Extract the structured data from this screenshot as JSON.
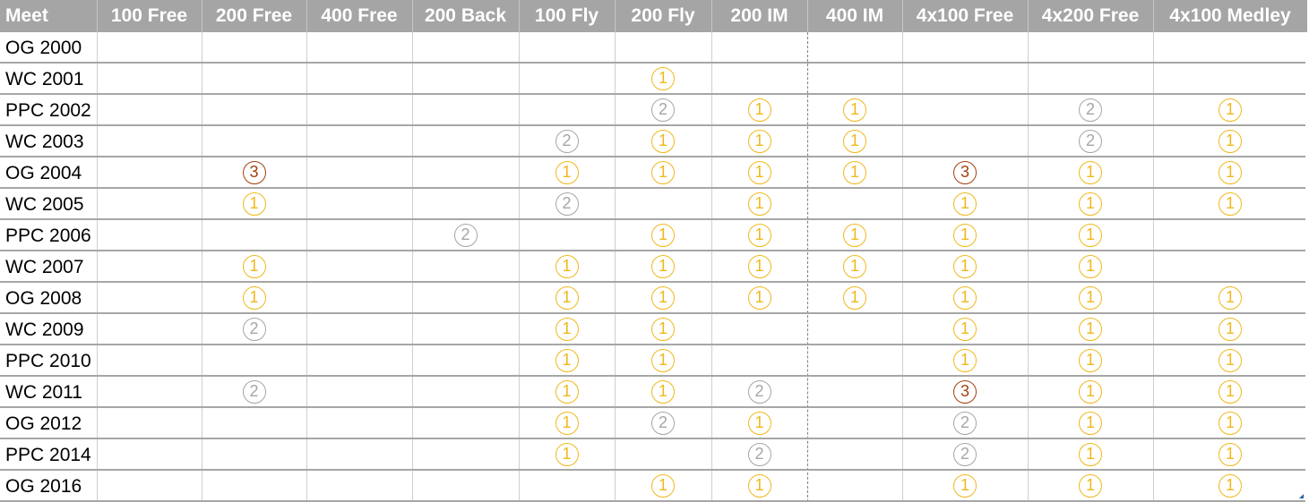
{
  "table": {
    "headers": [
      "Meet",
      "100 Free",
      "200 Free",
      "400 Free",
      "200 Back",
      "100 Fly",
      "200 Fly",
      "200 IM",
      "400 IM",
      "4x100 Free",
      "4x200 Free",
      "4x100 Medley"
    ],
    "rows": [
      {
        "meet": "OG 2000",
        "cells": [
          "",
          "",
          "",
          "",
          "",
          "",
          "",
          "",
          "",
          "",
          ""
        ]
      },
      {
        "meet": "WC 2001",
        "cells": [
          "",
          "",
          "",
          "",
          "",
          "1",
          "",
          "",
          "",
          "",
          ""
        ]
      },
      {
        "meet": "PPC 2002",
        "cells": [
          "",
          "",
          "",
          "",
          "",
          "2",
          "1",
          "1",
          "",
          "2",
          "1"
        ]
      },
      {
        "meet": "WC 2003",
        "cells": [
          "",
          "",
          "",
          "",
          "2",
          "1",
          "1",
          "1",
          "",
          "2",
          "1"
        ]
      },
      {
        "meet": "OG 2004",
        "cells": [
          "",
          "3",
          "",
          "",
          "1",
          "1",
          "1",
          "1",
          "3",
          "1",
          "1"
        ]
      },
      {
        "meet": "WC 2005",
        "cells": [
          "",
          "1",
          "",
          "",
          "2",
          "",
          "1",
          "",
          "1",
          "1",
          "1"
        ]
      },
      {
        "meet": "PPC 2006",
        "cells": [
          "",
          "",
          "",
          "2",
          "",
          "1",
          "1",
          "1",
          "1",
          "1",
          ""
        ]
      },
      {
        "meet": "WC 2007",
        "cells": [
          "",
          "1",
          "",
          "",
          "1",
          "1",
          "1",
          "1",
          "1",
          "1",
          ""
        ]
      },
      {
        "meet": "OG 2008",
        "cells": [
          "",
          "1",
          "",
          "",
          "1",
          "1",
          "1",
          "1",
          "1",
          "1",
          "1"
        ]
      },
      {
        "meet": "WC 2009",
        "cells": [
          "",
          "2",
          "",
          "",
          "1",
          "1",
          "",
          "",
          "1",
          "1",
          "1"
        ]
      },
      {
        "meet": "PPC 2010",
        "cells": [
          "",
          "",
          "",
          "",
          "1",
          "1",
          "",
          "",
          "1",
          "1",
          "1"
        ]
      },
      {
        "meet": "WC 2011",
        "cells": [
          "",
          "2",
          "",
          "",
          "1",
          "1",
          "2",
          "",
          "3",
          "1",
          "1"
        ]
      },
      {
        "meet": "OG 2012",
        "cells": [
          "",
          "",
          "",
          "",
          "1",
          "2",
          "1",
          "",
          "2",
          "1",
          "1"
        ]
      },
      {
        "meet": "PPC 2014",
        "cells": [
          "",
          "",
          "",
          "",
          "1",
          "",
          "2",
          "",
          "2",
          "1",
          "1"
        ]
      },
      {
        "meet": "OG 2016",
        "cells": [
          "",
          "",
          "",
          "",
          "",
          "1",
          "1",
          "",
          "1",
          "1",
          "1"
        ]
      }
    ]
  },
  "colors": {
    "header_bg": "#a5a5a5",
    "header_text": "#ffffff",
    "gold": "#f0b81d",
    "silver": "#a6a6a6",
    "bronze": "#a5400f"
  }
}
